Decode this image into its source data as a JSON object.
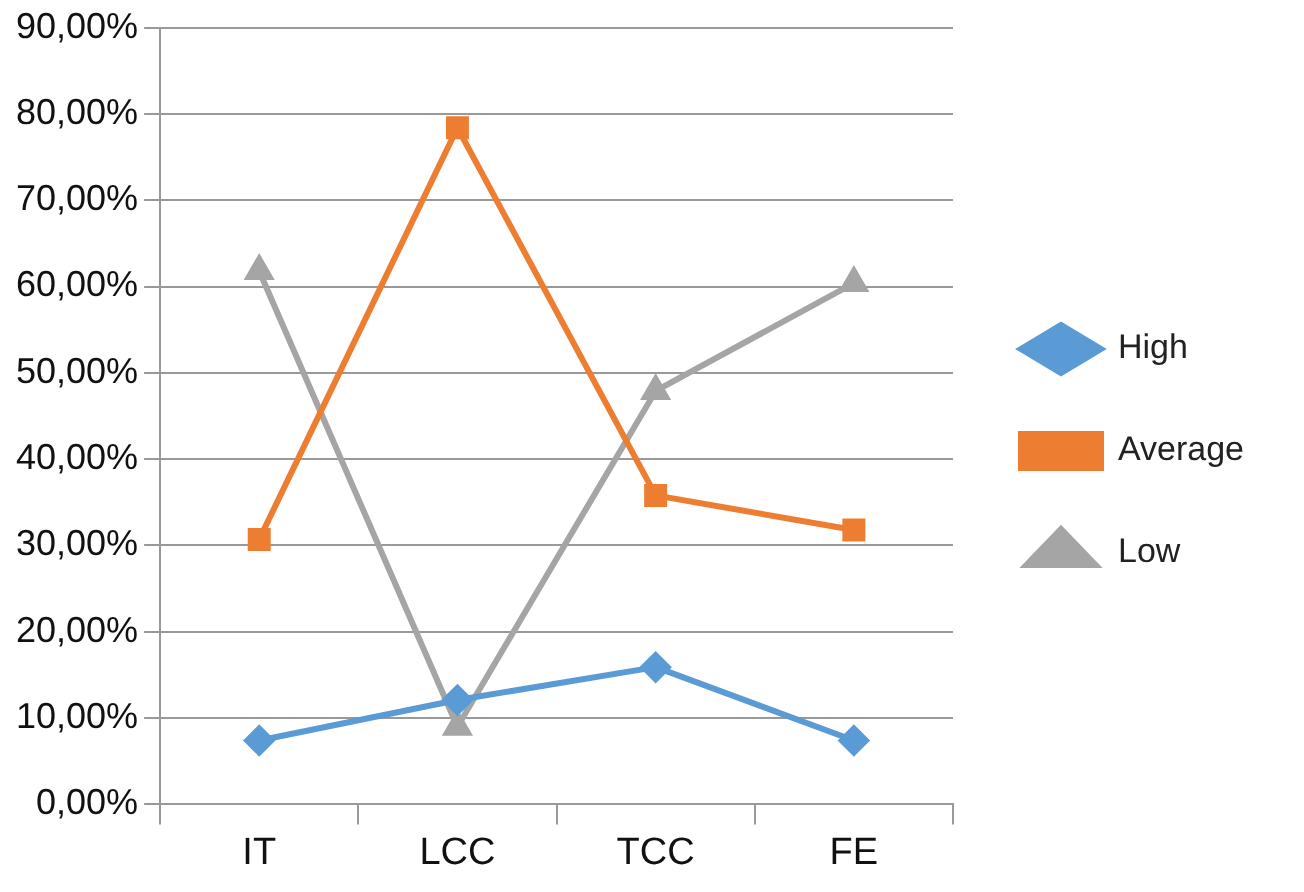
{
  "chart_data": {
    "type": "line",
    "categories": [
      "IT",
      "LCC",
      "TCC",
      "FE"
    ],
    "series": [
      {
        "name": "High",
        "color": "#5b9bd5",
        "marker": "diamond",
        "values": [
          7.4,
          12.1,
          15.9,
          7.4
        ]
      },
      {
        "name": "Average",
        "color": "#ed7d31",
        "marker": "square",
        "values": [
          30.7,
          78.4,
          35.8,
          31.8
        ]
      },
      {
        "name": "Low",
        "color": "#a5a5a5",
        "marker": "triangle",
        "values": [
          61.8,
          9.0,
          47.9,
          60.4
        ]
      }
    ],
    "ylim": [
      0,
      90
    ],
    "yticks": [
      {
        "value": 0,
        "label": "0,00%"
      },
      {
        "value": 10,
        "label": "10,00%"
      },
      {
        "value": 20,
        "label": "20,00%"
      },
      {
        "value": 30,
        "label": "30,00%"
      },
      {
        "value": 40,
        "label": "40,00%"
      },
      {
        "value": 50,
        "label": "50,00%"
      },
      {
        "value": 60,
        "label": "60,00%"
      },
      {
        "value": 70,
        "label": "70,00%"
      },
      {
        "value": 80,
        "label": "80,00%"
      },
      {
        "value": 90,
        "label": "90,00%"
      }
    ],
    "grid": "y",
    "legend": "right"
  }
}
